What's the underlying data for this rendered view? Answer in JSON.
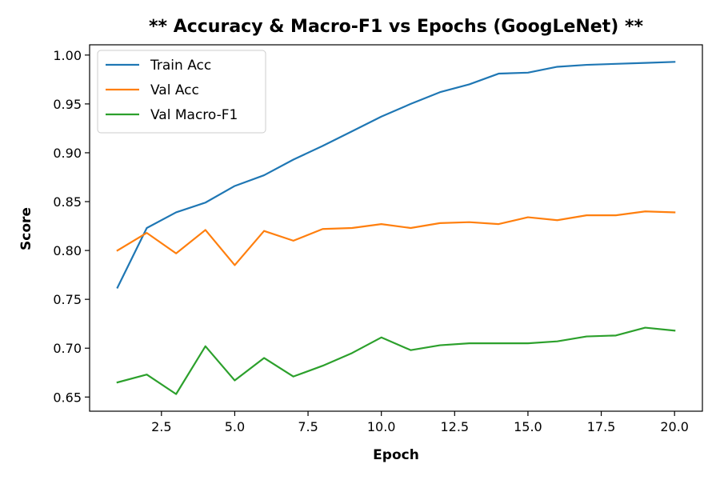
{
  "chart_data": {
    "type": "line",
    "title": "** Accuracy & Macro-F1 vs Epochs (GoogLeNet) **",
    "xlabel": "Epoch",
    "ylabel": "Score",
    "xlim": [
      0.05,
      20.95
    ],
    "ylim": [
      0.6355,
      1.0105
    ],
    "x": [
      1,
      2,
      3,
      4,
      5,
      6,
      7,
      8,
      9,
      10,
      11,
      12,
      13,
      14,
      15,
      16,
      17,
      18,
      19,
      20
    ],
    "xticks": [
      2.5,
      5.0,
      7.5,
      10.0,
      12.5,
      15.0,
      17.5,
      20.0
    ],
    "xtick_labels": [
      "2.5",
      "5.0",
      "7.5",
      "10.0",
      "12.5",
      "15.0",
      "17.5",
      "20.0"
    ],
    "yticks": [
      0.65,
      0.7,
      0.75,
      0.8,
      0.85,
      0.9,
      0.95,
      1.0
    ],
    "ytick_labels": [
      "0.65",
      "0.70",
      "0.75",
      "0.80",
      "0.85",
      "0.90",
      "0.95",
      "1.00"
    ],
    "grid": false,
    "legend_position": "top-left",
    "series": [
      {
        "name": "Train Acc",
        "color": "#1f77b4",
        "values": [
          0.762,
          0.823,
          0.839,
          0.849,
          0.866,
          0.877,
          0.893,
          0.907,
          0.922,
          0.937,
          0.95,
          0.962,
          0.97,
          0.981,
          0.982,
          0.988,
          0.99,
          0.991,
          0.992,
          0.993
        ]
      },
      {
        "name": "Val Acc",
        "color": "#ff7f0e",
        "values": [
          0.8,
          0.818,
          0.797,
          0.821,
          0.785,
          0.82,
          0.81,
          0.822,
          0.823,
          0.827,
          0.823,
          0.828,
          0.829,
          0.827,
          0.834,
          0.831,
          0.836,
          0.836,
          0.84,
          0.839
        ]
      },
      {
        "name": "Val Macro-F1",
        "color": "#2ca02c",
        "values": [
          0.665,
          0.673,
          0.653,
          0.702,
          0.667,
          0.69,
          0.671,
          0.682,
          0.695,
          0.711,
          0.698,
          0.703,
          0.705,
          0.705,
          0.705,
          0.707,
          0.712,
          0.713,
          0.721,
          0.718
        ]
      }
    ]
  }
}
